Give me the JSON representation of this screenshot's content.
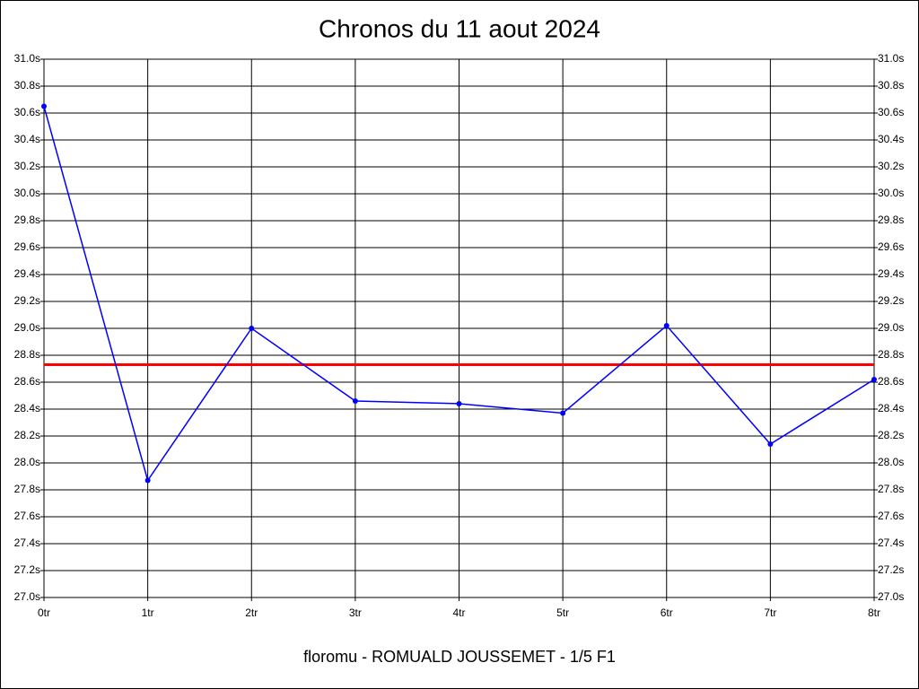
{
  "chart_data": {
    "type": "line",
    "title": "Chronos du 11 aout 2024",
    "xlabel": "floromu - ROMUALD JOUSSEMET - 1/5 F1",
    "categories": [
      "0tr",
      "1tr",
      "2tr",
      "3tr",
      "4tr",
      "5tr",
      "6tr",
      "7tr",
      "8tr"
    ],
    "series": [
      {
        "color": "#0000ff",
        "values": [
          30.65,
          27.87,
          29.0,
          28.46,
          28.44,
          28.37,
          29.02,
          28.14,
          28.62
        ]
      }
    ],
    "reference_line": {
      "value": 28.73,
      "color": "#ff0000"
    },
    "ylim": [
      27.0,
      31.0
    ],
    "yticks": [
      {
        "value": 27.0,
        "label": "27.0s"
      },
      {
        "value": 27.2,
        "label": "27.2s"
      },
      {
        "value": 27.4,
        "label": "27.4s"
      },
      {
        "value": 27.6,
        "label": "27.6s"
      },
      {
        "value": 27.8,
        "label": "27.8s"
      },
      {
        "value": 28.0,
        "label": "28.0s"
      },
      {
        "value": 28.2,
        "label": "28.2s"
      },
      {
        "value": 28.4,
        "label": "28.4s"
      },
      {
        "value": 28.6,
        "label": "28.6s"
      },
      {
        "value": 28.8,
        "label": "28.8s"
      },
      {
        "value": 29.0,
        "label": "29.0s"
      },
      {
        "value": 29.2,
        "label": "29.2s"
      },
      {
        "value": 29.4,
        "label": "29.4s"
      },
      {
        "value": 29.6,
        "label": "29.6s"
      },
      {
        "value": 29.8,
        "label": "29.8s"
      },
      {
        "value": 30.0,
        "label": "30.0s"
      },
      {
        "value": 30.2,
        "label": "30.2s"
      },
      {
        "value": 30.4,
        "label": "30.4s"
      },
      {
        "value": 30.6,
        "label": "30.6s"
      },
      {
        "value": 30.8,
        "label": "30.8s"
      },
      {
        "value": 31.0,
        "label": "31.0s"
      }
    ],
    "grid": true
  }
}
